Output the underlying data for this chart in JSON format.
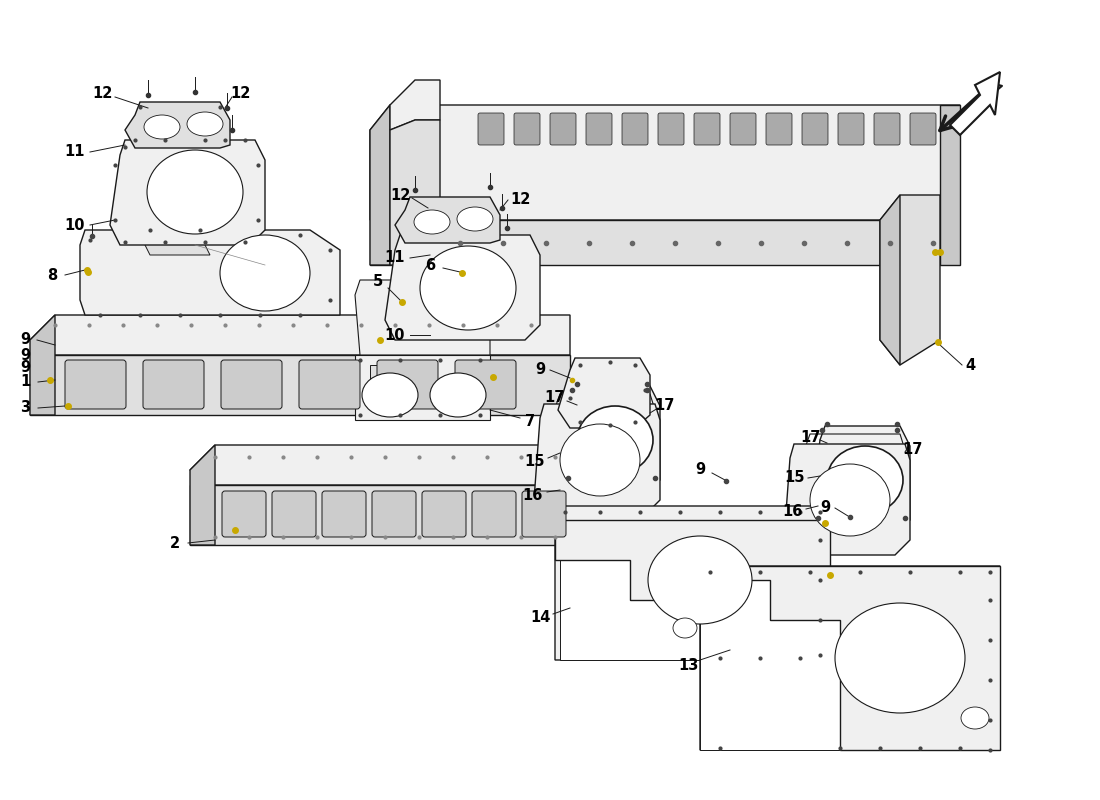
{
  "background_color": "#ffffff",
  "line_color": "#1a1a1a",
  "label_color": "#000000",
  "fig_width": 11.0,
  "fig_height": 8.0,
  "face_light": "#f0f0f0",
  "face_mid": "#e0e0e0",
  "face_dark": "#c8c8c8",
  "face_white": "#ffffff"
}
